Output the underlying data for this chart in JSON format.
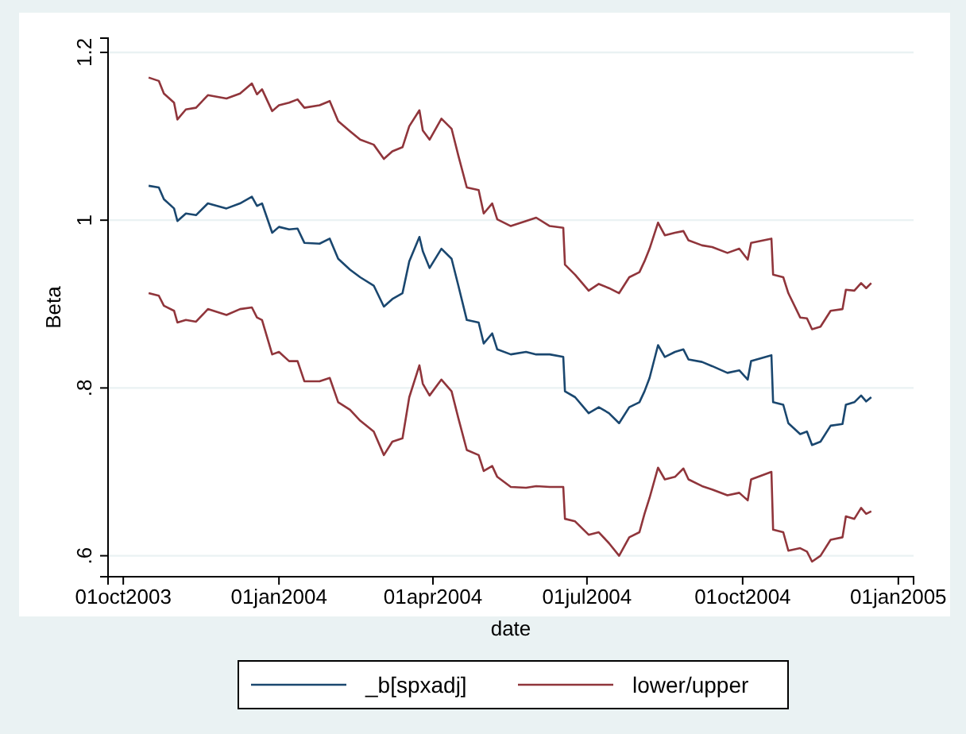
{
  "chart_data": {
    "type": "line",
    "xlabel": "date",
    "ylabel": "Beta",
    "x": [
      "2003-10-16",
      "2003-10-22",
      "2003-10-25",
      "2003-10-31",
      "2003-11-02",
      "2003-11-07",
      "2003-11-13",
      "2003-11-20",
      "2003-12-01",
      "2003-12-09",
      "2003-12-16",
      "2003-12-19",
      "2003-12-22",
      "2003-12-28",
      "2004-01-01",
      "2004-01-07",
      "2004-01-12",
      "2004-01-16",
      "2004-01-25",
      "2004-01-31",
      "2004-02-05",
      "2004-02-12",
      "2004-02-18",
      "2004-02-26",
      "2004-03-03",
      "2004-03-08",
      "2004-03-14",
      "2004-03-18",
      "2004-03-24",
      "2004-03-26",
      "2004-03-30",
      "2004-04-06",
      "2004-04-12",
      "2004-04-16",
      "2004-04-21",
      "2004-04-28",
      "2004-05-01",
      "2004-05-06",
      "2004-05-09",
      "2004-05-17",
      "2004-05-26",
      "2004-06-01",
      "2004-06-09",
      "2004-06-17",
      "2004-06-18",
      "2004-06-24",
      "2004-07-02",
      "2004-07-08",
      "2004-07-14",
      "2004-07-20",
      "2004-07-26",
      "2004-08-01",
      "2004-08-04",
      "2004-08-07",
      "2004-08-12",
      "2004-08-16",
      "2004-08-22",
      "2004-08-27",
      "2004-08-30",
      "2004-09-07",
      "2004-09-13",
      "2004-09-22",
      "2004-09-29",
      "2004-10-04",
      "2004-10-06",
      "2004-10-18",
      "2004-10-19",
      "2004-10-25",
      "2004-10-28",
      "2004-11-04",
      "2004-11-08",
      "2004-11-11",
      "2004-11-16",
      "2004-11-22",
      "2004-11-29",
      "2004-12-01",
      "2004-12-06",
      "2004-12-10",
      "2004-12-13",
      "2004-12-16"
    ],
    "series": [
      {
        "name": "_b[spxadj]",
        "color": "#1a476f",
        "values": [
          1.041,
          1.039,
          1.025,
          1.014,
          0.999,
          1.008,
          1.006,
          1.02,
          1.014,
          1.02,
          1.028,
          1.017,
          1.02,
          0.985,
          0.992,
          0.989,
          0.99,
          0.973,
          0.972,
          0.978,
          0.954,
          0.941,
          0.932,
          0.922,
          0.897,
          0.906,
          0.913,
          0.951,
          0.98,
          0.963,
          0.943,
          0.966,
          0.954,
          0.922,
          0.881,
          0.878,
          0.853,
          0.865,
          0.846,
          0.84,
          0.843,
          0.84,
          0.84,
          0.837,
          0.796,
          0.789,
          0.77,
          0.777,
          0.77,
          0.758,
          0.777,
          0.783,
          0.796,
          0.812,
          0.851,
          0.837,
          0.843,
          0.846,
          0.834,
          0.831,
          0.826,
          0.818,
          0.821,
          0.81,
          0.832,
          0.839,
          0.783,
          0.78,
          0.758,
          0.745,
          0.748,
          0.732,
          0.736,
          0.755,
          0.757,
          0.78,
          0.783,
          0.791,
          0.784,
          0.789
        ]
      },
      {
        "name": "lower/upper",
        "color": "#90353b",
        "values": [
          1.17,
          1.166,
          1.151,
          1.14,
          1.12,
          1.132,
          1.134,
          1.149,
          1.145,
          1.151,
          1.163,
          1.15,
          1.156,
          1.13,
          1.137,
          1.14,
          1.144,
          1.134,
          1.137,
          1.142,
          1.118,
          1.106,
          1.096,
          1.09,
          1.073,
          1.082,
          1.087,
          1.112,
          1.131,
          1.107,
          1.096,
          1.121,
          1.109,
          1.077,
          1.039,
          1.036,
          1.008,
          1.02,
          1.001,
          0.993,
          0.999,
          1.003,
          0.993,
          0.991,
          0.947,
          0.935,
          0.916,
          0.924,
          0.919,
          0.913,
          0.932,
          0.938,
          0.951,
          0.966,
          0.997,
          0.982,
          0.985,
          0.987,
          0.976,
          0.97,
          0.968,
          0.961,
          0.966,
          0.953,
          0.973,
          0.978,
          0.935,
          0.932,
          0.913,
          0.884,
          0.883,
          0.87,
          0.873,
          0.892,
          0.894,
          0.917,
          0.916,
          0.925,
          0.919,
          0.925
        ]
      },
      {
        "color": "#90353b",
        "values": [
          0.913,
          0.91,
          0.898,
          0.892,
          0.878,
          0.881,
          0.879,
          0.894,
          0.887,
          0.894,
          0.896,
          0.884,
          0.881,
          0.84,
          0.843,
          0.832,
          0.832,
          0.808,
          0.808,
          0.812,
          0.783,
          0.774,
          0.761,
          0.748,
          0.72,
          0.736,
          0.74,
          0.789,
          0.827,
          0.805,
          0.791,
          0.81,
          0.796,
          0.764,
          0.726,
          0.72,
          0.701,
          0.707,
          0.694,
          0.682,
          0.681,
          0.683,
          0.682,
          0.682,
          0.644,
          0.641,
          0.625,
          0.628,
          0.615,
          0.6,
          0.622,
          0.628,
          0.65,
          0.669,
          0.705,
          0.691,
          0.694,
          0.704,
          0.691,
          0.683,
          0.679,
          0.672,
          0.675,
          0.666,
          0.691,
          0.7,
          0.631,
          0.628,
          0.606,
          0.609,
          0.605,
          0.593,
          0.6,
          0.619,
          0.622,
          0.647,
          0.644,
          0.657,
          0.65,
          0.653
        ]
      }
    ],
    "xlim": [
      "2003-09-22",
      "2005-01-10"
    ],
    "xticks": [
      {
        "value": "2003-10-01",
        "label": "01oct2003"
      },
      {
        "value": "2004-01-01",
        "label": "01jan2004"
      },
      {
        "value": "2004-04-01",
        "label": "01apr2004"
      },
      {
        "value": "2004-07-01",
        "label": "01jul2004"
      },
      {
        "value": "2004-10-01",
        "label": "01oct2004"
      },
      {
        "value": "2005-01-01",
        "label": "01jan2005"
      }
    ],
    "ylim": [
      0.575,
      1.217
    ],
    "yticks": [
      {
        "value": 0.6,
        "label": ".6"
      },
      {
        "value": 0.8,
        "label": ".8"
      },
      {
        "value": 1,
        "label": "1"
      },
      {
        "value": 1.2,
        "label": "1.2"
      }
    ],
    "grid": "y",
    "legend": "bottom",
    "line_style": "solid",
    "marker": "none"
  }
}
